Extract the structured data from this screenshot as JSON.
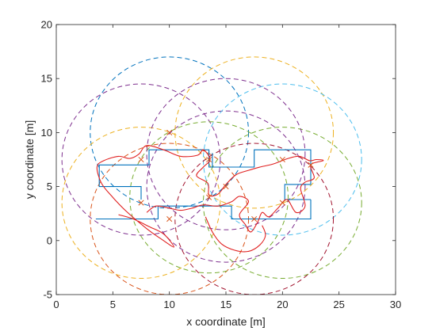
{
  "chart_data": {
    "type": "line",
    "title": "",
    "xlabel": "x coordinate [m]",
    "ylabel": "y coordinate [m]",
    "xlim": [
      0,
      30
    ],
    "ylim": [
      -5,
      20
    ],
    "xticks": [
      0,
      5,
      10,
      15,
      20,
      25,
      30
    ],
    "yticks": [
      -5,
      0,
      5,
      10,
      15,
      20
    ],
    "grid": false,
    "legend": "none",
    "colors": {
      "floorplan": "#0072BD",
      "trajectory": "#E02020",
      "marker": "#D95319",
      "axes": "#262626"
    },
    "circles": [
      {
        "cx": 10.0,
        "cy": 10.0,
        "r": 7.0,
        "color": "#0072BD"
      },
      {
        "cx": 7.5,
        "cy": 7.5,
        "r": 7.0,
        "color": "#7E2F8E"
      },
      {
        "cx": 7.5,
        "cy": 3.5,
        "r": 7.0,
        "color": "#EDB120"
      },
      {
        "cx": 10.0,
        "cy": 2.0,
        "r": 7.0,
        "color": "#D95319"
      },
      {
        "cx": 13.5,
        "cy": 4.0,
        "r": 7.0,
        "color": "#77AC30"
      },
      {
        "cx": 15.0,
        "cy": 5.0,
        "r": 7.0,
        "color": "#7E2F8E"
      },
      {
        "cx": 17.5,
        "cy": 10.0,
        "r": 7.0,
        "color": "#EDB120"
      },
      {
        "cx": 20.0,
        "cy": 7.5,
        "r": 7.0,
        "color": "#4DBEEE"
      },
      {
        "cx": 20.0,
        "cy": 3.5,
        "r": 7.0,
        "color": "#77AC30"
      },
      {
        "cx": 17.5,
        "cy": 2.0,
        "r": 7.0,
        "color": "#A2142F"
      },
      {
        "cx": 15.0,
        "cy": 8.0,
        "r": 7.0,
        "color": "#7E2F8E"
      }
    ],
    "markers": [
      {
        "x": 7.5,
        "y": 7.5
      },
      {
        "x": 10.0,
        "y": 10.0
      },
      {
        "x": 13.5,
        "y": 7.5
      },
      {
        "x": 15.0,
        "y": 5.0
      },
      {
        "x": 13.5,
        "y": 4.0
      },
      {
        "x": 7.5,
        "y": 3.5
      },
      {
        "x": 10.0,
        "y": 2.0
      },
      {
        "x": 17.5,
        "y": 2.0
      },
      {
        "x": 20.0,
        "y": 3.5
      },
      {
        "x": 20.0,
        "y": 7.5
      },
      {
        "x": 22.5,
        "y": 7.0
      }
    ],
    "floorplan": [
      [
        [
          3.5,
          2.0
        ],
        [
          9.0,
          2.0
        ],
        [
          9.0,
          3.2
        ],
        [
          15.5,
          3.2
        ],
        [
          15.5,
          2.0
        ],
        [
          22.5,
          2.0
        ],
        [
          22.5,
          3.8
        ]
      ],
      [
        [
          22.5,
          3.8
        ],
        [
          20.2,
          3.8
        ],
        [
          20.2,
          5.2
        ],
        [
          22.5,
          5.2
        ],
        [
          22.5,
          8.4
        ],
        [
          17.5,
          8.4
        ],
        [
          17.5,
          6.8
        ],
        [
          13.5,
          6.8
        ],
        [
          13.5,
          8.4
        ],
        [
          8.2,
          8.4
        ],
        [
          8.2,
          7.0
        ],
        [
          3.8,
          7.0
        ],
        [
          3.8,
          5.0
        ],
        [
          7.5,
          5.0
        ],
        [
          7.5,
          3.8
        ]
      ],
      [
        [
          13.8,
          6.8
        ],
        [
          13.8,
          8.1
        ]
      ]
    ],
    "trajectories": [
      [
        [
          5.5,
          2.4
        ],
        [
          6.8,
          2.0
        ],
        [
          8.2,
          1.3
        ],
        [
          9.5,
          0.6
        ],
        [
          10.4,
          -0.6
        ],
        [
          9.2,
          0.2
        ],
        [
          8.0,
          1.1
        ],
        [
          6.2,
          2.7
        ],
        [
          5.0,
          4.0
        ],
        [
          4.0,
          5.3
        ],
        [
          3.6,
          6.8
        ],
        [
          4.2,
          7.4
        ],
        [
          5.5,
          7.8
        ],
        [
          6.5,
          7.6
        ],
        [
          7.3,
          8.0
        ],
        [
          8.0,
          8.8
        ],
        [
          9.5,
          8.4
        ],
        [
          11.0,
          7.8
        ],
        [
          12.5,
          7.9
        ],
        [
          13.0,
          8.4
        ],
        [
          13.6,
          7.5
        ],
        [
          13.0,
          6.8
        ],
        [
          12.4,
          6.0
        ],
        [
          13.4,
          5.3
        ],
        [
          13.5,
          4.2
        ],
        [
          14.3,
          4.3
        ],
        [
          15.0,
          5.2
        ],
        [
          15.9,
          6.1
        ],
        [
          17.0,
          6.5
        ],
        [
          18.0,
          6.8
        ],
        [
          19.2,
          7.1
        ],
        [
          20.5,
          7.6
        ],
        [
          21.5,
          7.8
        ],
        [
          22.4,
          7.4
        ],
        [
          23.0,
          7.5
        ],
        [
          23.6,
          7.4
        ],
        [
          22.5,
          7.0
        ],
        [
          22.8,
          5.8
        ],
        [
          22.0,
          5.4
        ],
        [
          21.6,
          4.8
        ],
        [
          22.0,
          3.2
        ],
        [
          21.2,
          2.6
        ],
        [
          20.4,
          3.8
        ],
        [
          19.6,
          3.0
        ],
        [
          18.8,
          2.2
        ],
        [
          18.2,
          2.6
        ],
        [
          17.8,
          1.7
        ],
        [
          17.2,
          0.8
        ],
        [
          16.7,
          1.5
        ],
        [
          16.2,
          2.4
        ],
        [
          17.0,
          3.6
        ],
        [
          16.2,
          4.1
        ],
        [
          15.5,
          3.6
        ],
        [
          14.3,
          3.2
        ],
        [
          13.0,
          3.3
        ],
        [
          12.0,
          3.0
        ],
        [
          11.0,
          2.8
        ],
        [
          10.0,
          3.0
        ],
        [
          8.8,
          3.2
        ],
        [
          8.0,
          2.6
        ]
      ],
      [
        [
          13.2,
          2.2
        ],
        [
          13.8,
          0.8
        ],
        [
          14.6,
          -0.3
        ],
        [
          15.8,
          -0.9
        ],
        [
          17.0,
          -1.0
        ],
        [
          18.0,
          -0.4
        ],
        [
          18.5,
          0.5
        ],
        [
          18.2,
          1.4
        ]
      ]
    ]
  }
}
